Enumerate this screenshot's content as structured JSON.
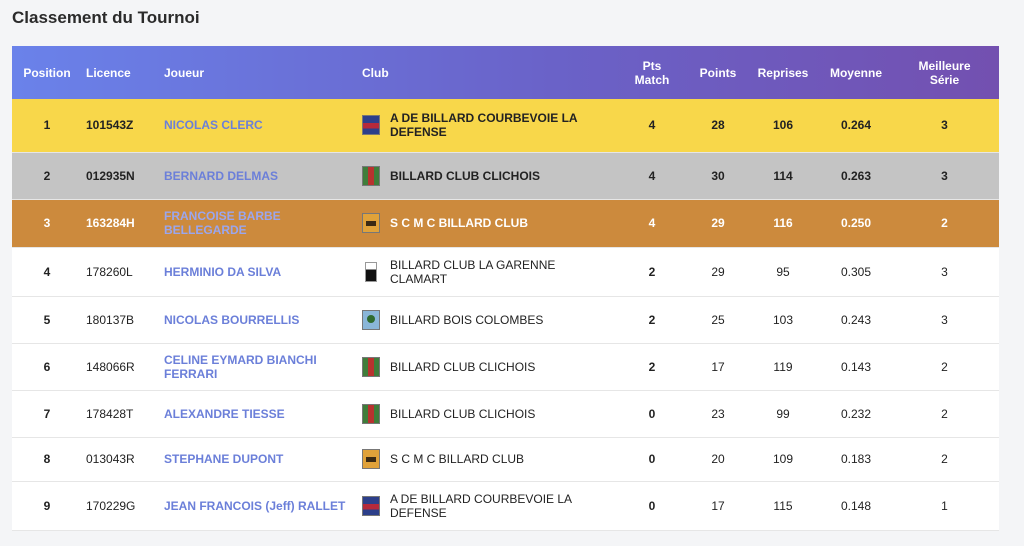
{
  "page": {
    "title": "Classement du Tournoi"
  },
  "table": {
    "headers": {
      "position": "Position",
      "licence": "Licence",
      "joueur": "Joueur",
      "club": "Club",
      "pts_match_1": "Pts",
      "pts_match_2": "Match",
      "points": "Points",
      "reprises": "Reprises",
      "moyenne": "Moyenne",
      "meilleure_1": "Meilleure",
      "meilleure_2": "Série"
    },
    "rows": [
      {
        "position": "1",
        "licence": "101543Z",
        "joueur": "NICOLAS CLERC",
        "club": "A DE BILLARD COURBEVOIE LA DEFENSE",
        "club_logo": "courbevoie-logo-icon",
        "pts_match": "4",
        "points": "28",
        "reprises": "106",
        "moyenne": "0.264",
        "meilleure_serie": "3",
        "highlight": "#f8d74a"
      },
      {
        "position": "2",
        "licence": "012935N",
        "joueur": "BERNARD DELMAS",
        "club": "BILLARD CLUB CLICHOIS",
        "club_logo": "clichois-logo-icon",
        "pts_match": "4",
        "points": "30",
        "reprises": "114",
        "moyenne": "0.263",
        "meilleure_serie": "3",
        "highlight": "#c4c4c4"
      },
      {
        "position": "3",
        "licence": "163284H",
        "joueur": "FRANCOISE BARBE BELLEGARDE",
        "club": "S C M C BILLARD CLUB",
        "club_logo": "smc-logo-icon",
        "pts_match": "4",
        "points": "29",
        "reprises": "116",
        "moyenne": "0.250",
        "meilleure_serie": "2",
        "highlight": "#cc8a3d"
      },
      {
        "position": "4",
        "licence": "178260L",
        "joueur": "HERMINIO DA SILVA",
        "club": "BILLARD CLUB LA GARENNE CLAMART",
        "club_logo": "garenne-logo-icon",
        "pts_match": "2",
        "points": "29",
        "reprises": "95",
        "moyenne": "0.305",
        "meilleure_serie": "3"
      },
      {
        "position": "5",
        "licence": "180137B",
        "joueur": "NICOLAS BOURRELLIS",
        "club": "BILLARD BOIS COLOMBES",
        "club_logo": "bois-colombes-logo-icon",
        "pts_match": "2",
        "points": "25",
        "reprises": "103",
        "moyenne": "0.243",
        "meilleure_serie": "3"
      },
      {
        "position": "6",
        "licence": "148066R",
        "joueur": "CELINE EYMARD BIANCHI FERRARI",
        "club": "BILLARD CLUB CLICHOIS",
        "club_logo": "clichois-logo-icon",
        "pts_match": "2",
        "points": "17",
        "reprises": "119",
        "moyenne": "0.143",
        "meilleure_serie": "2"
      },
      {
        "position": "7",
        "licence": "178428T",
        "joueur": "ALEXANDRE TIESSE",
        "club": "BILLARD CLUB CLICHOIS",
        "club_logo": "clichois-logo-icon",
        "pts_match": "0",
        "points": "23",
        "reprises": "99",
        "moyenne": "0.232",
        "meilleure_serie": "2"
      },
      {
        "position": "8",
        "licence": "013043R",
        "joueur": "STEPHANE DUPONT",
        "club": "S C M C BILLARD CLUB",
        "club_logo": "smc-logo-icon",
        "pts_match": "0",
        "points": "20",
        "reprises": "109",
        "moyenne": "0.183",
        "meilleure_serie": "2"
      },
      {
        "position": "9",
        "licence": "170229G",
        "joueur": "JEAN FRANCOIS (Jeff) RALLET",
        "club": "A DE BILLARD COURBEVOIE LA DEFENSE",
        "club_logo": "courbevoie-logo-icon",
        "pts_match": "0",
        "points": "17",
        "reprises": "115",
        "moyenne": "0.148",
        "meilleure_serie": "1"
      }
    ]
  },
  "colors": {
    "header_gradient_start": "#6a82ea",
    "header_gradient_end": "#7350b0",
    "gold": "#f8d74a",
    "silver": "#c4c4c4",
    "bronze": "#cc8a3d",
    "player_link": "#6b7fd9"
  }
}
